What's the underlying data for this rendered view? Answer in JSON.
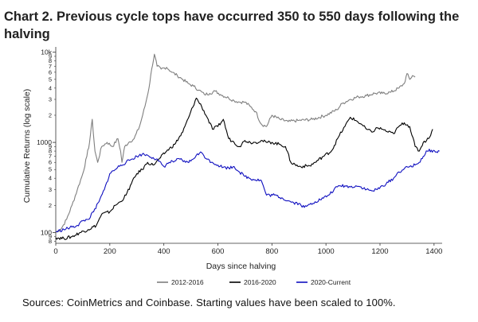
{
  "title": "Chart 2. Previous cycle tops have occurred 350 to 550 days following the halving",
  "source": "Sources: CoinMetrics and Coinbase. Starting values have been scaled to 100%.",
  "chart_data": {
    "type": "line",
    "xlabel": "Days since halving",
    "ylabel": "Cumulative Returns (log scale)",
    "yscale": "log",
    "xlim": [
      0,
      1430
    ],
    "ylim": [
      76,
      11000
    ],
    "x_ticks": [
      0,
      200,
      400,
      600,
      800,
      1000,
      1200,
      1400
    ],
    "y_major_ticks": [
      {
        "value": 100,
        "label": "100"
      },
      {
        "value": 1000,
        "label": "1000"
      },
      {
        "value": 10000,
        "label": "10k"
      }
    ],
    "y_minor_ticks": [
      {
        "value": 200,
        "label": "2"
      },
      {
        "value": 300,
        "label": "3"
      },
      {
        "value": 400,
        "label": "4"
      },
      {
        "value": 500,
        "label": "5"
      },
      {
        "value": 600,
        "label": "6"
      },
      {
        "value": 700,
        "label": "7"
      },
      {
        "value": 800,
        "label": "8"
      },
      {
        "value": 900,
        "label": "9"
      },
      {
        "value": 2000,
        "label": "2"
      },
      {
        "value": 3000,
        "label": "3"
      },
      {
        "value": 4000,
        "label": "4"
      },
      {
        "value": 5000,
        "label": "5"
      },
      {
        "value": 6000,
        "label": "6"
      },
      {
        "value": 7000,
        "label": "7"
      },
      {
        "value": 8000,
        "label": "8"
      },
      {
        "value": 9000,
        "label": "9"
      }
    ],
    "low_minor_ticks": [
      {
        "value": 80,
        "label": "8"
      },
      {
        "value": 90,
        "label": "9"
      }
    ],
    "series": [
      {
        "name": "2012-2016",
        "color": "#7f7f7f",
        "points": [
          [
            0,
            100
          ],
          [
            20,
            110
          ],
          [
            40,
            140
          ],
          [
            60,
            200
          ],
          [
            80,
            300
          ],
          [
            100,
            450
          ],
          [
            115,
            700
          ],
          [
            125,
            1000
          ],
          [
            135,
            1800
          ],
          [
            145,
            800
          ],
          [
            155,
            600
          ],
          [
            170,
            900
          ],
          [
            190,
            1000
          ],
          [
            210,
            900
          ],
          [
            230,
            1100
          ],
          [
            240,
            800
          ],
          [
            245,
            600
          ],
          [
            255,
            900
          ],
          [
            270,
            1000
          ],
          [
            290,
            1100
          ],
          [
            310,
            1500
          ],
          [
            330,
            2500
          ],
          [
            345,
            4000
          ],
          [
            355,
            6500
          ],
          [
            365,
            9500
          ],
          [
            375,
            7000
          ],
          [
            390,
            6500
          ],
          [
            410,
            6800
          ],
          [
            430,
            6000
          ],
          [
            450,
            5500
          ],
          [
            470,
            5000
          ],
          [
            490,
            4500
          ],
          [
            510,
            4200
          ],
          [
            530,
            3800
          ],
          [
            550,
            3400
          ],
          [
            570,
            3500
          ],
          [
            590,
            3700
          ],
          [
            610,
            3400
          ],
          [
            640,
            3100
          ],
          [
            660,
            2900
          ],
          [
            680,
            2800
          ],
          [
            700,
            2800
          ],
          [
            720,
            2500
          ],
          [
            740,
            2200
          ],
          [
            760,
            1600
          ],
          [
            780,
            1500
          ],
          [
            800,
            2000
          ],
          [
            830,
            1800
          ],
          [
            860,
            1700
          ],
          [
            900,
            1750
          ],
          [
            950,
            1800
          ],
          [
            1000,
            2000
          ],
          [
            1040,
            2300
          ],
          [
            1060,
            2700
          ],
          [
            1090,
            3000
          ],
          [
            1120,
            3200
          ],
          [
            1150,
            3300
          ],
          [
            1180,
            3500
          ],
          [
            1210,
            3500
          ],
          [
            1240,
            3600
          ],
          [
            1270,
            4000
          ],
          [
            1290,
            4500
          ],
          [
            1300,
            5800
          ],
          [
            1310,
            5000
          ],
          [
            1320,
            5500
          ],
          [
            1330,
            5300
          ]
        ]
      },
      {
        "name": "2016-2020",
        "color": "#000000",
        "points": [
          [
            0,
            88
          ],
          [
            30,
            86
          ],
          [
            60,
            90
          ],
          [
            90,
            100
          ],
          [
            120,
            108
          ],
          [
            150,
            120
          ],
          [
            170,
            160
          ],
          [
            200,
            170
          ],
          [
            220,
            200
          ],
          [
            240,
            220
          ],
          [
            260,
            260
          ],
          [
            280,
            350
          ],
          [
            300,
            450
          ],
          [
            320,
            500
          ],
          [
            340,
            600
          ],
          [
            360,
            560
          ],
          [
            380,
            640
          ],
          [
            410,
            800
          ],
          [
            440,
            950
          ],
          [
            470,
            1300
          ],
          [
            495,
            2000
          ],
          [
            520,
            3100
          ],
          [
            540,
            2500
          ],
          [
            560,
            1900
          ],
          [
            580,
            1400
          ],
          [
            600,
            1500
          ],
          [
            620,
            1800
          ],
          [
            640,
            1100
          ],
          [
            660,
            1000
          ],
          [
            680,
            900
          ],
          [
            700,
            1050
          ],
          [
            720,
            1000
          ],
          [
            740,
            1000
          ],
          [
            760,
            1050
          ],
          [
            780,
            1000
          ],
          [
            800,
            1000
          ],
          [
            830,
            950
          ],
          [
            850,
            900
          ],
          [
            870,
            600
          ],
          [
            900,
            540
          ],
          [
            940,
            550
          ],
          [
            960,
            600
          ],
          [
            990,
            700
          ],
          [
            1020,
            800
          ],
          [
            1050,
            1200
          ],
          [
            1070,
            1500
          ],
          [
            1090,
            1900
          ],
          [
            1110,
            1750
          ],
          [
            1130,
            1600
          ],
          [
            1150,
            1400
          ],
          [
            1170,
            1300
          ],
          [
            1190,
            1450
          ],
          [
            1210,
            1400
          ],
          [
            1230,
            1300
          ],
          [
            1250,
            1250
          ],
          [
            1270,
            1500
          ],
          [
            1290,
            1650
          ],
          [
            1310,
            1500
          ],
          [
            1330,
            900
          ],
          [
            1345,
            800
          ],
          [
            1360,
            1000
          ],
          [
            1380,
            1100
          ],
          [
            1395,
            1400
          ]
        ]
      },
      {
        "name": "2020-Current",
        "color": "#1010c0",
        "points": [
          [
            0,
            102
          ],
          [
            30,
            108
          ],
          [
            60,
            115
          ],
          [
            80,
            120
          ],
          [
            100,
            135
          ],
          [
            120,
            140
          ],
          [
            140,
            170
          ],
          [
            160,
            220
          ],
          [
            180,
            300
          ],
          [
            200,
            450
          ],
          [
            220,
            500
          ],
          [
            240,
            560
          ],
          [
            260,
            600
          ],
          [
            280,
            650
          ],
          [
            300,
            700
          ],
          [
            320,
            740
          ],
          [
            340,
            720
          ],
          [
            360,
            680
          ],
          [
            380,
            620
          ],
          [
            400,
            540
          ],
          [
            420,
            600
          ],
          [
            440,
            620
          ],
          [
            460,
            650
          ],
          [
            480,
            600
          ],
          [
            500,
            620
          ],
          [
            520,
            720
          ],
          [
            540,
            770
          ],
          [
            560,
            650
          ],
          [
            580,
            600
          ],
          [
            600,
            560
          ],
          [
            620,
            530
          ],
          [
            640,
            520
          ],
          [
            660,
            540
          ],
          [
            680,
            470
          ],
          [
            700,
            420
          ],
          [
            730,
            390
          ],
          [
            760,
            380
          ],
          [
            780,
            260
          ],
          [
            810,
            260
          ],
          [
            840,
            240
          ],
          [
            860,
            225
          ],
          [
            880,
            215
          ],
          [
            900,
            210
          ],
          [
            920,
            190
          ],
          [
            940,
            205
          ],
          [
            960,
            220
          ],
          [
            990,
            240
          ],
          [
            1010,
            260
          ],
          [
            1030,
            300
          ],
          [
            1050,
            330
          ],
          [
            1070,
            330
          ],
          [
            1090,
            320
          ],
          [
            1110,
            330
          ],
          [
            1130,
            320
          ],
          [
            1150,
            300
          ],
          [
            1170,
            290
          ],
          [
            1190,
            300
          ],
          [
            1210,
            330
          ],
          [
            1230,
            360
          ],
          [
            1250,
            400
          ],
          [
            1270,
            470
          ],
          [
            1290,
            510
          ],
          [
            1310,
            540
          ],
          [
            1330,
            560
          ],
          [
            1345,
            600
          ],
          [
            1360,
            700
          ],
          [
            1375,
            800
          ],
          [
            1390,
            820
          ],
          [
            1405,
            780
          ],
          [
            1420,
            800
          ]
        ]
      }
    ]
  }
}
